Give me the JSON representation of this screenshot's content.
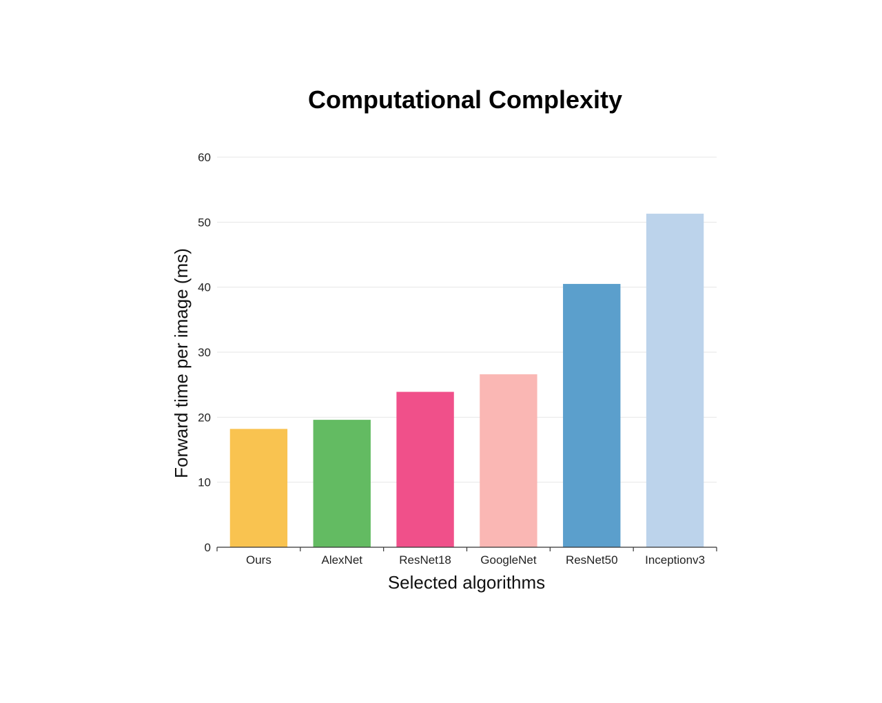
{
  "chart_data": {
    "type": "bar",
    "title": "Computational Complexity",
    "xlabel": "Selected algorithms",
    "ylabel": "Forward time per image (ms)",
    "categories": [
      "Ours",
      "AlexNet",
      "ResNet18",
      "GoogleNet",
      "ResNet50",
      "Inceptionv3"
    ],
    "values": [
      18.2,
      19.6,
      23.9,
      26.6,
      40.5,
      51.3
    ],
    "colors": [
      "#F9C350",
      "#63BB62",
      "#F0508A",
      "#FAB7B4",
      "#5B9FCC",
      "#BCD3EB"
    ],
    "ylim": [
      0,
      60
    ],
    "yticks": [
      0,
      10,
      20,
      30,
      40,
      50,
      60
    ],
    "grid": true,
    "legend": "none"
  }
}
